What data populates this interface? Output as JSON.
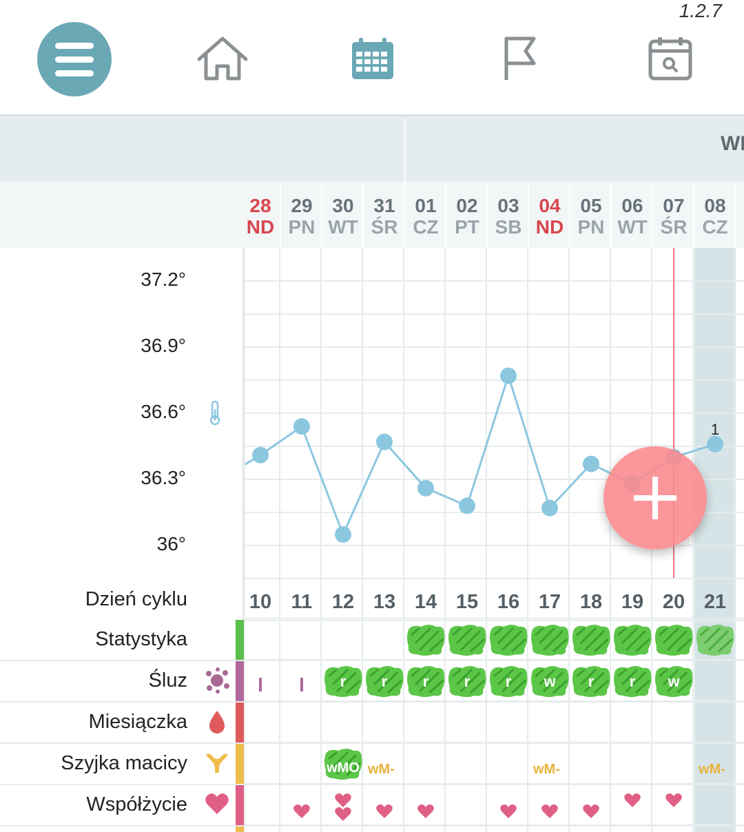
{
  "app": {
    "version": "1.2.7"
  },
  "nav": {
    "menu_icon": "hamburger-icon",
    "home_icon": "home-icon",
    "calendar_icon": "calendar-icon",
    "flag_icon": "flag-icon",
    "calendar_search_icon": "calendar-search-icon",
    "active_color": "#6aa8b5"
  },
  "header": {
    "week_label": "WI"
  },
  "dates": [
    {
      "day": "28",
      "weekday": "ND",
      "weekend": true
    },
    {
      "day": "29",
      "weekday": "PN",
      "weekend": false
    },
    {
      "day": "30",
      "weekday": "WT",
      "weekend": false
    },
    {
      "day": "31",
      "weekday": "ŚR",
      "weekend": false
    },
    {
      "day": "01",
      "weekday": "CZ",
      "weekend": false
    },
    {
      "day": "02",
      "weekday": "PT",
      "weekend": false
    },
    {
      "day": "03",
      "weekday": "SB",
      "weekend": false
    },
    {
      "day": "04",
      "weekday": "ND",
      "weekend": true
    },
    {
      "day": "05",
      "weekday": "PN",
      "weekend": false
    },
    {
      "day": "06",
      "weekday": "WT",
      "weekend": false
    },
    {
      "day": "07",
      "weekday": "ŚR",
      "weekend": false
    },
    {
      "day": "08",
      "weekday": "CZ",
      "weekend": false
    }
  ],
  "chart_data": {
    "type": "line",
    "y_ticks": [
      "37.2°",
      "36.9°",
      "36.6°",
      "36.3°",
      "36°"
    ],
    "ylim": [
      36.0,
      37.2
    ],
    "x": [
      "28",
      "29",
      "30",
      "31",
      "01",
      "02",
      "03",
      "04",
      "05",
      "06",
      "07",
      "08"
    ],
    "series": [
      {
        "values": [
          36.41,
          36.54,
          36.05,
          36.47,
          36.26,
          36.18,
          36.77,
          36.17,
          36.37,
          36.28,
          36.4,
          36.46
        ]
      }
    ],
    "point_label": "1",
    "line_color": "#8cc7e0",
    "today_line_color": "#e6787d"
  },
  "table": {
    "rows": [
      {
        "label": "Dzień cyklu",
        "icon": "",
        "bar_color": ""
      },
      {
        "label": "Statystyka",
        "icon": "",
        "bar_color": "#5bbf4b"
      },
      {
        "label": "Śluz",
        "icon": "mucus-icon",
        "bar_color": "#b0699a"
      },
      {
        "label": "Miesiączka",
        "icon": "blood-drop-icon",
        "bar_color": "#df5a5a"
      },
      {
        "label": "Szyjka macicy",
        "icon": "uterus-icon",
        "bar_color": "#efbc4c"
      },
      {
        "label": "Współżycie",
        "icon": "heart-icon",
        "bar_color": "#e05f84"
      }
    ],
    "cycle_days": [
      "10",
      "11",
      "12",
      "13",
      "14",
      "15",
      "16",
      "17",
      "18",
      "19",
      "20",
      "21"
    ],
    "sluz_marks": [
      "I",
      "I",
      "r",
      "r",
      "r",
      "r",
      "r",
      "w",
      "r",
      "r",
      "w",
      ""
    ],
    "szyjka_marks": [
      "",
      "",
      "wMO",
      "wM-",
      "",
      "",
      "",
      "wM-",
      "",
      "",
      "",
      "wM-"
    ]
  },
  "fab": {
    "icon": "plus-icon",
    "color": "#fa898c"
  }
}
